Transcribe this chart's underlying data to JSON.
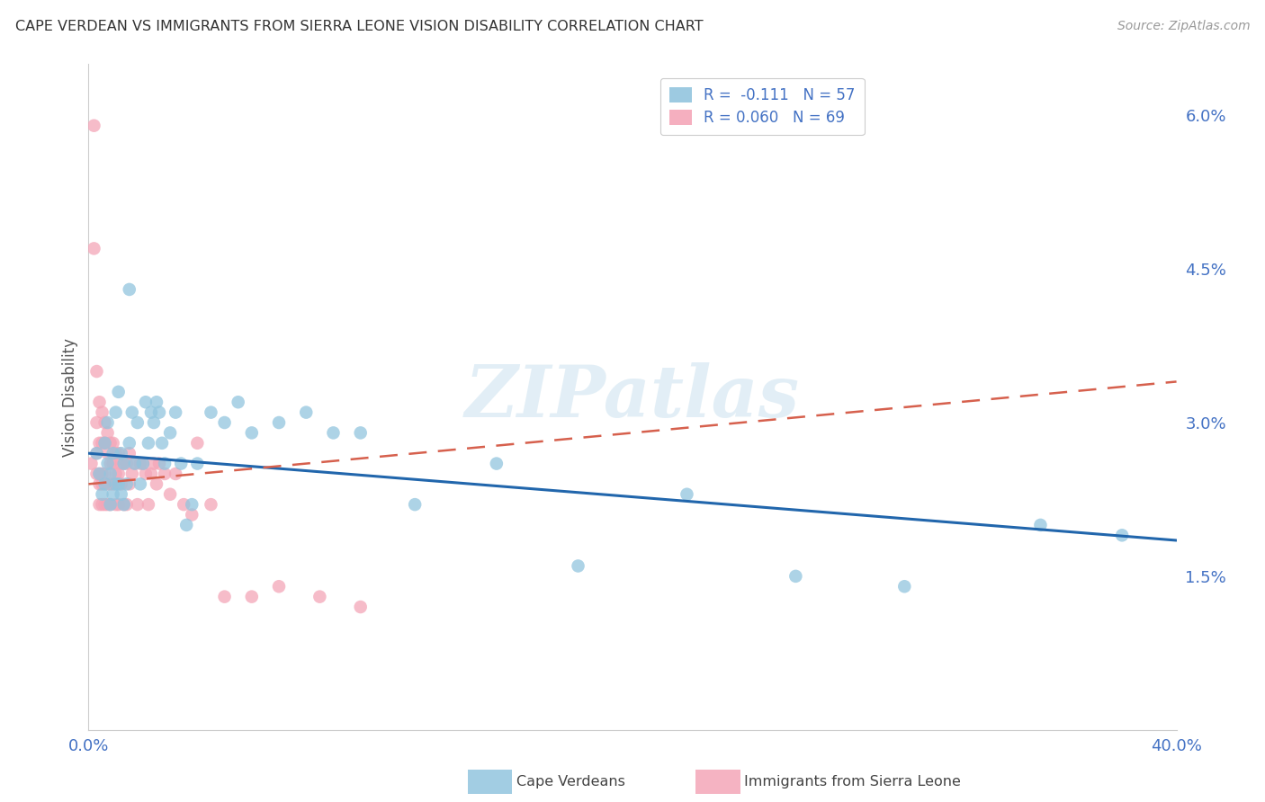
{
  "title": "CAPE VERDEAN VS IMMIGRANTS FROM SIERRA LEONE VISION DISABILITY CORRELATION CHART",
  "source": "Source: ZipAtlas.com",
  "ylabel": "Vision Disability",
  "yticks": [
    0.0,
    0.015,
    0.03,
    0.045,
    0.06
  ],
  "ytick_labels": [
    "",
    "1.5%",
    "3.0%",
    "4.5%",
    "6.0%"
  ],
  "xlim": [
    0.0,
    0.4
  ],
  "ylim": [
    0.0,
    0.065
  ],
  "watermark": "ZIPatlas",
  "legend_r1": "R =  -0.111   N = 57",
  "legend_r2": "R = 0.060   N = 69",
  "blue_color": "#92c5de",
  "pink_color": "#f4a6b8",
  "line_blue": "#2166ac",
  "line_pink": "#d6604d",
  "title_color": "#333333",
  "axis_label_color": "#4472c4",
  "grid_color": "#d0d0d0",
  "blue_scatter_x": [
    0.003,
    0.004,
    0.005,
    0.006,
    0.006,
    0.007,
    0.007,
    0.008,
    0.008,
    0.009,
    0.009,
    0.01,
    0.01,
    0.011,
    0.011,
    0.012,
    0.012,
    0.013,
    0.013,
    0.014,
    0.015,
    0.015,
    0.016,
    0.017,
    0.018,
    0.019,
    0.02,
    0.021,
    0.022,
    0.023,
    0.024,
    0.025,
    0.026,
    0.027,
    0.028,
    0.03,
    0.032,
    0.034,
    0.036,
    0.038,
    0.04,
    0.045,
    0.05,
    0.055,
    0.06,
    0.07,
    0.08,
    0.09,
    0.1,
    0.12,
    0.15,
    0.18,
    0.22,
    0.26,
    0.3,
    0.35,
    0.38
  ],
  "blue_scatter_y": [
    0.027,
    0.025,
    0.023,
    0.028,
    0.024,
    0.03,
    0.026,
    0.025,
    0.022,
    0.027,
    0.023,
    0.031,
    0.024,
    0.033,
    0.024,
    0.027,
    0.023,
    0.026,
    0.022,
    0.024,
    0.043,
    0.028,
    0.031,
    0.026,
    0.03,
    0.024,
    0.026,
    0.032,
    0.028,
    0.031,
    0.03,
    0.032,
    0.031,
    0.028,
    0.026,
    0.029,
    0.031,
    0.026,
    0.02,
    0.022,
    0.026,
    0.031,
    0.03,
    0.032,
    0.029,
    0.03,
    0.031,
    0.029,
    0.029,
    0.022,
    0.026,
    0.016,
    0.023,
    0.015,
    0.014,
    0.02,
    0.019
  ],
  "pink_scatter_x": [
    0.001,
    0.002,
    0.002,
    0.003,
    0.003,
    0.003,
    0.003,
    0.004,
    0.004,
    0.004,
    0.004,
    0.004,
    0.005,
    0.005,
    0.005,
    0.005,
    0.005,
    0.006,
    0.006,
    0.006,
    0.006,
    0.007,
    0.007,
    0.007,
    0.007,
    0.008,
    0.008,
    0.008,
    0.008,
    0.009,
    0.009,
    0.009,
    0.01,
    0.01,
    0.01,
    0.011,
    0.011,
    0.011,
    0.012,
    0.012,
    0.013,
    0.013,
    0.014,
    0.014,
    0.015,
    0.015,
    0.016,
    0.017,
    0.018,
    0.019,
    0.02,
    0.021,
    0.022,
    0.023,
    0.024,
    0.025,
    0.026,
    0.028,
    0.03,
    0.032,
    0.035,
    0.038,
    0.04,
    0.045,
    0.05,
    0.06,
    0.07,
    0.085,
    0.1
  ],
  "pink_scatter_y": [
    0.026,
    0.059,
    0.047,
    0.035,
    0.03,
    0.027,
    0.025,
    0.032,
    0.028,
    0.025,
    0.024,
    0.022,
    0.031,
    0.028,
    0.025,
    0.024,
    0.022,
    0.03,
    0.028,
    0.025,
    0.022,
    0.029,
    0.027,
    0.024,
    0.022,
    0.028,
    0.026,
    0.024,
    0.022,
    0.028,
    0.026,
    0.024,
    0.027,
    0.025,
    0.022,
    0.027,
    0.025,
    0.022,
    0.026,
    0.024,
    0.026,
    0.022,
    0.026,
    0.022,
    0.027,
    0.024,
    0.025,
    0.026,
    0.022,
    0.026,
    0.026,
    0.025,
    0.022,
    0.025,
    0.026,
    0.024,
    0.026,
    0.025,
    0.023,
    0.025,
    0.022,
    0.021,
    0.028,
    0.022,
    0.013,
    0.013,
    0.014,
    0.013,
    0.012
  ],
  "blue_line_x": [
    0.0,
    0.4
  ],
  "blue_line_y": [
    0.027,
    0.0185
  ],
  "pink_line_x": [
    0.0,
    0.4
  ],
  "pink_line_y": [
    0.024,
    0.034
  ]
}
